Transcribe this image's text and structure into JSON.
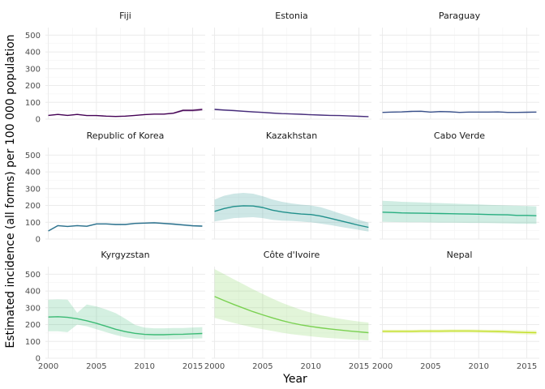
{
  "chart_data": {
    "type": "line",
    "facet_layout": "3x3",
    "xlabel": "Year",
    "ylabel": "Estimated incidence (all forms) per 100 000 population",
    "xlim": [
      1999.7,
      2016.3
    ],
    "ylim": [
      0,
      545
    ],
    "x_ticks": [
      2000,
      2005,
      2010,
      2015
    ],
    "y_ticks": [
      0,
      100,
      200,
      300,
      400,
      500
    ],
    "grid": true,
    "x": [
      2000,
      2001,
      2002,
      2003,
      2004,
      2005,
      2006,
      2007,
      2008,
      2009,
      2010,
      2011,
      2012,
      2013,
      2014,
      2015,
      2016
    ],
    "series": [
      {
        "name": "Fiji",
        "color": "#440154",
        "values": [
          22,
          28,
          22,
          28,
          21,
          21,
          18,
          16,
          18,
          22,
          27,
          30,
          30,
          35,
          52,
          52,
          57
        ],
        "lower": [
          20,
          25,
          20,
          25,
          19,
          19,
          16,
          14,
          16,
          20,
          24,
          27,
          27,
          31,
          45,
          45,
          50
        ],
        "upper": [
          25,
          31,
          25,
          31,
          23,
          23,
          20,
          18,
          20,
          24,
          30,
          33,
          34,
          40,
          60,
          60,
          66
        ]
      },
      {
        "name": "Estonia",
        "color": "#472D7B",
        "values": [
          58,
          54,
          51,
          47,
          43,
          40,
          36,
          33,
          31,
          29,
          26,
          24,
          22,
          21,
          19,
          17,
          15
        ],
        "lower": [
          53,
          49,
          46,
          43,
          39,
          36,
          33,
          30,
          28,
          26,
          24,
          22,
          20,
          19,
          17,
          15,
          13
        ],
        "upper": [
          63,
          59,
          56,
          51,
          47,
          44,
          39,
          36,
          34,
          32,
          29,
          26,
          24,
          23,
          21,
          19,
          17
        ]
      },
      {
        "name": "Paraguay",
        "color": "#3B528B",
        "values": [
          40,
          42,
          43,
          46,
          47,
          42,
          45,
          44,
          40,
          42,
          42,
          42,
          43,
          40,
          40,
          41,
          42
        ],
        "lower": [
          37,
          39,
          40,
          42,
          43,
          39,
          41,
          40,
          37,
          39,
          39,
          39,
          40,
          37,
          37,
          38,
          39
        ],
        "upper": [
          43,
          45,
          46,
          50,
          51,
          45,
          49,
          48,
          43,
          45,
          45,
          45,
          46,
          43,
          43,
          44,
          45
        ]
      },
      {
        "name": "Republic of Korea",
        "color": "#2C728E",
        "values": [
          48,
          80,
          75,
          80,
          76,
          90,
          90,
          87,
          87,
          93,
          95,
          97,
          93,
          89,
          84,
          79,
          77
        ],
        "lower": [
          45,
          76,
          71,
          76,
          72,
          86,
          86,
          83,
          83,
          89,
          91,
          92,
          88,
          84,
          79,
          74,
          72
        ],
        "upper": [
          51,
          84,
          79,
          84,
          80,
          94,
          94,
          91,
          91,
          97,
          99,
          102,
          98,
          94,
          89,
          84,
          82
        ]
      },
      {
        "name": "Kazakhstan",
        "color": "#21908C",
        "values": [
          165,
          182,
          194,
          198,
          197,
          188,
          172,
          162,
          155,
          149,
          146,
          137,
          124,
          110,
          96,
          82,
          70
        ],
        "lower": [
          105,
          115,
          125,
          128,
          130,
          125,
          115,
          110,
          108,
          104,
          100,
          92,
          84,
          74,
          64,
          55,
          45
        ],
        "upper": [
          235,
          258,
          270,
          275,
          270,
          255,
          236,
          222,
          212,
          205,
          200,
          190,
          172,
          153,
          135,
          115,
          98
        ]
      },
      {
        "name": "Cabo Verde",
        "color": "#28AE80",
        "values": [
          160,
          158,
          156,
          155,
          154,
          153,
          152,
          151,
          150,
          149,
          148,
          146,
          145,
          144,
          141,
          141,
          139
        ],
        "lower": [
          103,
          102,
          101,
          100,
          100,
          99,
          98,
          98,
          97,
          96,
          96,
          95,
          94,
          93,
          91,
          91,
          90
        ],
        "upper": [
          228,
          225,
          222,
          220,
          218,
          216,
          214,
          212,
          210,
          208,
          206,
          204,
          202,
          200,
          198,
          197,
          195
        ]
      },
      {
        "name": "Kyrgyzstan",
        "color": "#3CBB75",
        "values": [
          245,
          247,
          243,
          235,
          223,
          208,
          190,
          172,
          158,
          148,
          142,
          140,
          140,
          142,
          143,
          145,
          147
        ],
        "lower": [
          160,
          160,
          155,
          200,
          190,
          172,
          155,
          138,
          125,
          117,
          112,
          111,
          112,
          113,
          114,
          116,
          118
        ],
        "upper": [
          348,
          350,
          348,
          270,
          320,
          308,
          290,
          268,
          235,
          198,
          182,
          178,
          178,
          180,
          180,
          183,
          185
        ]
      },
      {
        "name": "Côte d'Ivoire",
        "color": "#7AD151",
        "values": [
          367,
          343,
          320,
          298,
          277,
          258,
          240,
          224,
          210,
          198,
          189,
          181,
          174,
          168,
          162,
          157,
          152
        ],
        "lower": [
          240,
          225,
          210,
          196,
          183,
          172,
          162,
          152,
          143,
          136,
          130,
          124,
          120,
          116,
          112,
          109,
          106
        ],
        "upper": [
          530,
          500,
          470,
          440,
          410,
          382,
          355,
          330,
          308,
          288,
          271,
          256,
          245,
          235,
          226,
          218,
          212
        ]
      },
      {
        "name": "Nepal",
        "color": "#C2DF23",
        "values": [
          160,
          160,
          160,
          160,
          161,
          161,
          161,
          162,
          162,
          162,
          161,
          160,
          159,
          157,
          155,
          153,
          152
        ],
        "lower": [
          150,
          150,
          150,
          150,
          151,
          151,
          151,
          152,
          152,
          152,
          151,
          150,
          148,
          146,
          143,
          141,
          139
        ],
        "upper": [
          170,
          170,
          170,
          170,
          171,
          171,
          171,
          172,
          172,
          172,
          171,
          170,
          170,
          169,
          168,
          166,
          165
        ]
      }
    ]
  }
}
